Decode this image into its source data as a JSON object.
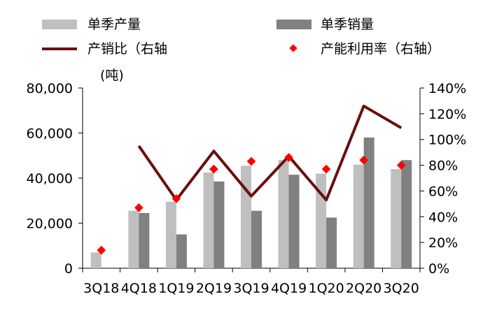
{
  "chart_data": {
    "type": "bar",
    "categories": [
      "3Q18",
      "4Q18",
      "1Q19",
      "2Q19",
      "3Q19",
      "4Q19",
      "1Q20",
      "2Q20",
      "3Q20"
    ],
    "series": [
      {
        "name": "单季产量",
        "kind": "bar",
        "axis": "left",
        "color": "#bfbfbf",
        "values": [
          7000,
          25500,
          29500,
          42500,
          45500,
          48000,
          42000,
          46000,
          44000
        ]
      },
      {
        "name": "单季销量",
        "kind": "bar",
        "axis": "left",
        "color": "#808080",
        "values": [
          null,
          24500,
          15000,
          38500,
          25500,
          41500,
          22500,
          58000,
          48000
        ]
      },
      {
        "name": "产销比（右轴",
        "kind": "line",
        "axis": "right",
        "color": "#6b0f0f",
        "values": [
          null,
          0.95,
          0.53,
          0.91,
          0.56,
          0.87,
          0.53,
          1.26,
          1.09
        ]
      },
      {
        "name": "产能利用率（右轴）",
        "kind": "marker",
        "axis": "right",
        "color": "#ff0000",
        "values": [
          0.14,
          0.47,
          0.54,
          0.77,
          0.83,
          0.86,
          0.77,
          0.84,
          0.8
        ]
      }
    ],
    "y_left": {
      "unit_label": "(吨)",
      "min": 0,
      "max": 80000,
      "ticks": [
        0,
        20000,
        40000,
        60000,
        80000
      ],
      "tick_labels": [
        "0",
        "20,000",
        "40,000",
        "60,000",
        "80,000"
      ]
    },
    "y_right": {
      "min": 0,
      "max": 1.4,
      "ticks": [
        0,
        0.2,
        0.4,
        0.6,
        0.8,
        1.0,
        1.2,
        1.4
      ],
      "tick_labels": [
        "0%",
        "20%",
        "40%",
        "60%",
        "80%",
        "100%",
        "120%",
        "140%"
      ]
    },
    "grid": false,
    "legend_position": "top"
  }
}
